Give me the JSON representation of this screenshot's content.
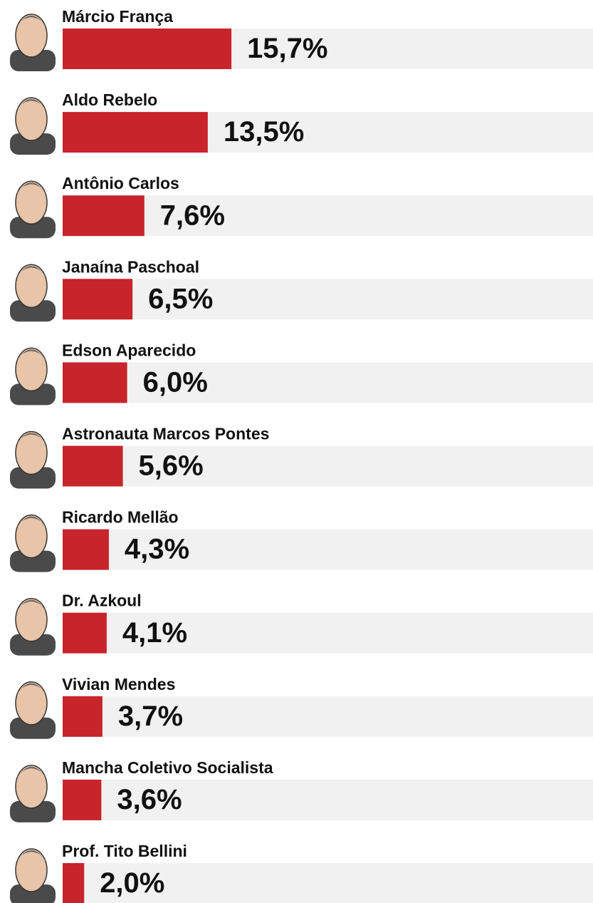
{
  "chart_data": {
    "type": "bar",
    "orientation": "horizontal",
    "categories": [
      "Márcio França",
      "Aldo Rebelo",
      "Antônio Carlos",
      "Janaína Paschoal",
      "Edson Aparecido",
      "Astronauta Marcos Pontes",
      "Ricardo Mellão",
      "Dr. Azkoul",
      "Vivian Mendes",
      "Mancha Coletivo Socialista",
      "Prof. Tito Bellini"
    ],
    "values": [
      15.7,
      13.5,
      7.6,
      6.5,
      6.0,
      5.6,
      4.3,
      4.1,
      3.7,
      3.6,
      2.0
    ],
    "value_labels": [
      "15,7%",
      "13,5%",
      "7,6%",
      "6,5%",
      "6,0%",
      "5,6%",
      "4,3%",
      "4,1%",
      "3,7%",
      "3,6%",
      "2,0%"
    ],
    "color": "#c8242b"
  }
}
